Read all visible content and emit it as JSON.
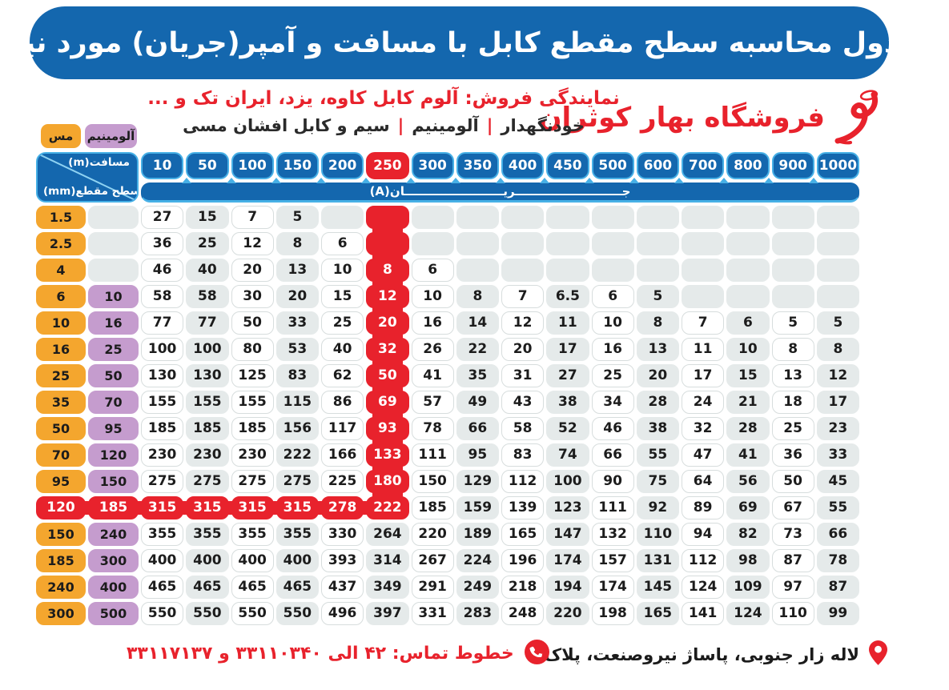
{
  "header": {
    "title": "جدول محاسبه سطح مقطع کابل با مسافت و آمپر(جریان) مورد نیاز"
  },
  "store": {
    "name": "فروشگاه بهار کوثران"
  },
  "subheader": {
    "dealer_line": "نمایندگی فروش: آلوم کابل کاوه، یزد، ایران تک و ...",
    "products_parts": [
      "سیم و کابل افشان مسی",
      "آلومینیم",
      "خودنگهدار"
    ],
    "separator": "|"
  },
  "legend": {
    "copper": "مس",
    "aluminum": "آلومینیم"
  },
  "table": {
    "corner": {
      "distance_label": "مسافت(m)",
      "area_label": "سطح مقطع(mm)"
    },
    "current_label": "جریان(A)",
    "current_label_display": "جــــــــــــــــــــــــــریــــــــــــــــــــــــان(A)",
    "columns": [
      "10",
      "50",
      "100",
      "150",
      "200",
      "250",
      "300",
      "350",
      "400",
      "450",
      "500",
      "600",
      "700",
      "800",
      "900",
      "1000"
    ],
    "highlight_column_index": 5,
    "highlight_row_index": 11,
    "rows": [
      {
        "cu": "1.5",
        "al": "",
        "v": [
          "27",
          "15",
          "7",
          "5",
          "",
          "",
          "",
          "",
          "",
          "",
          "",
          "",
          "",
          "",
          "",
          ""
        ]
      },
      {
        "cu": "2.5",
        "al": "",
        "v": [
          "36",
          "25",
          "12",
          "8",
          "6",
          "",
          "",
          "",
          "",
          "",
          "",
          "",
          "",
          "",
          "",
          ""
        ]
      },
      {
        "cu": "4",
        "al": "",
        "v": [
          "46",
          "40",
          "20",
          "13",
          "10",
          "8",
          "6",
          "",
          "",
          "",
          "",
          "",
          "",
          "",
          "",
          ""
        ]
      },
      {
        "cu": "6",
        "al": "10",
        "v": [
          "58",
          "58",
          "30",
          "20",
          "15",
          "12",
          "10",
          "8",
          "7",
          "6.5",
          "6",
          "5",
          "",
          "",
          "",
          ""
        ]
      },
      {
        "cu": "10",
        "al": "16",
        "v": [
          "77",
          "77",
          "50",
          "33",
          "25",
          "20",
          "16",
          "14",
          "12",
          "11",
          "10",
          "8",
          "7",
          "6",
          "5",
          "5"
        ]
      },
      {
        "cu": "16",
        "al": "25",
        "v": [
          "100",
          "100",
          "80",
          "53",
          "40",
          "32",
          "26",
          "22",
          "20",
          "17",
          "16",
          "13",
          "11",
          "10",
          "8",
          "8"
        ]
      },
      {
        "cu": "25",
        "al": "50",
        "v": [
          "130",
          "130",
          "125",
          "83",
          "62",
          "50",
          "41",
          "35",
          "31",
          "27",
          "25",
          "20",
          "17",
          "15",
          "13",
          "12"
        ]
      },
      {
        "cu": "35",
        "al": "70",
        "v": [
          "155",
          "155",
          "155",
          "115",
          "86",
          "69",
          "57",
          "49",
          "43",
          "38",
          "34",
          "28",
          "24",
          "21",
          "18",
          "17"
        ]
      },
      {
        "cu": "50",
        "al": "95",
        "v": [
          "185",
          "185",
          "185",
          "156",
          "117",
          "93",
          "78",
          "66",
          "58",
          "52",
          "46",
          "38",
          "32",
          "28",
          "25",
          "23"
        ]
      },
      {
        "cu": "70",
        "al": "120",
        "v": [
          "230",
          "230",
          "230",
          "222",
          "166",
          "133",
          "111",
          "95",
          "83",
          "74",
          "66",
          "55",
          "47",
          "41",
          "36",
          "33"
        ]
      },
      {
        "cu": "95",
        "al": "150",
        "v": [
          "275",
          "275",
          "275",
          "275",
          "225",
          "180",
          "150",
          "129",
          "112",
          "100",
          "90",
          "75",
          "64",
          "56",
          "50",
          "45"
        ]
      },
      {
        "cu": "120",
        "al": "185",
        "v": [
          "315",
          "315",
          "315",
          "315",
          "278",
          "222",
          "185",
          "159",
          "139",
          "123",
          "111",
          "92",
          "89",
          "69",
          "67",
          "55"
        ]
      },
      {
        "cu": "150",
        "al": "240",
        "v": [
          "355",
          "355",
          "355",
          "355",
          "330",
          "264",
          "220",
          "189",
          "165",
          "147",
          "132",
          "110",
          "94",
          "82",
          "73",
          "66"
        ]
      },
      {
        "cu": "185",
        "al": "300",
        "v": [
          "400",
          "400",
          "400",
          "400",
          "393",
          "314",
          "267",
          "224",
          "196",
          "174",
          "157",
          "131",
          "112",
          "98",
          "87",
          "78"
        ]
      },
      {
        "cu": "240",
        "al": "400",
        "v": [
          "465",
          "465",
          "465",
          "465",
          "437",
          "349",
          "291",
          "249",
          "218",
          "194",
          "174",
          "145",
          "124",
          "109",
          "97",
          "87"
        ]
      },
      {
        "cu": "300",
        "al": "500",
        "v": [
          "550",
          "550",
          "550",
          "550",
          "496",
          "397",
          "331",
          "283",
          "248",
          "220",
          "198",
          "165",
          "141",
          "124",
          "110",
          "99"
        ]
      }
    ]
  },
  "footer": {
    "address": "لاله زار جنوبی، پاساژ نیروصنعت، پلاک ۶",
    "phone": "خطوط تماس: ۴۲ الی ۳۳۱۱۰۳۴۰ و ۳۳۱۱۷۱۳۷"
  },
  "colors": {
    "blue": "#1467ae",
    "light_blue": "#47b0e6",
    "red": "#e8222c",
    "orange": "#f4a62e",
    "purple": "#c59cce",
    "cell_gray": "#e5eaea",
    "cell_border": "#d7dddd"
  }
}
